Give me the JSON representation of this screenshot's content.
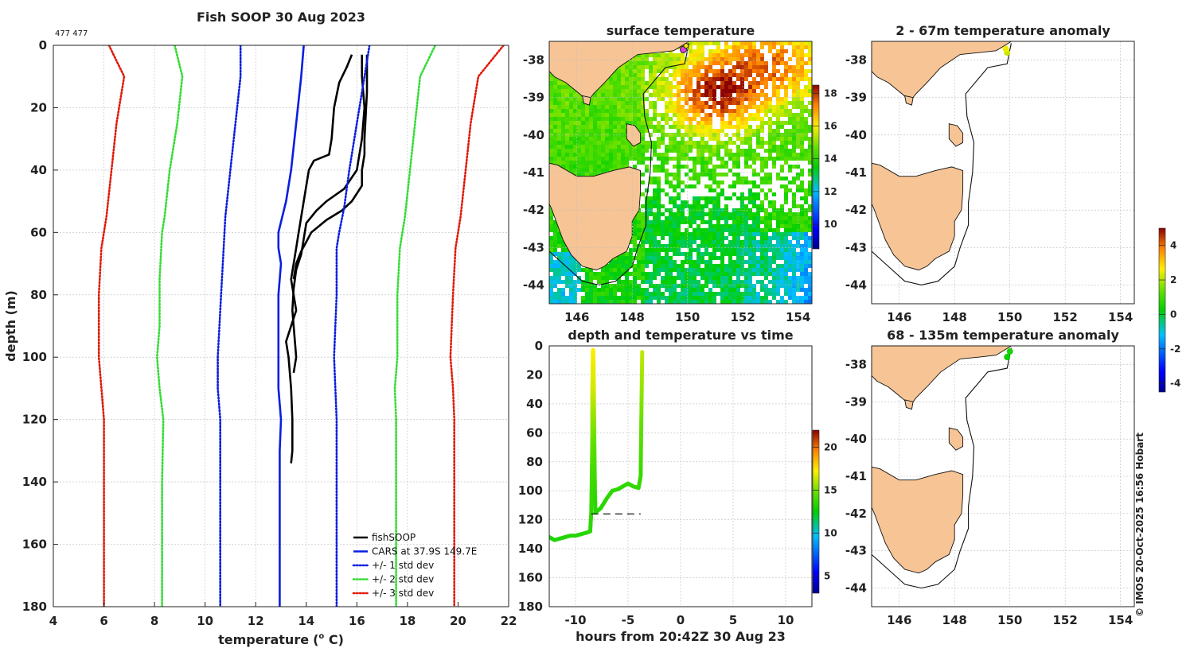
{
  "main": {
    "title": "Fish SOOP 30 Aug 2023",
    "profile_id": "477 477",
    "xlabel": "temperature",
    "xlabel_sup": "o",
    "xlabel_unit": " C)",
    "xlabel_open": "(",
    "ylabel": "depth (m)",
    "copyright": "© IMOS 20-Oct-2025 16:56 Hobart"
  },
  "colors": {
    "fishsoop": "#000000",
    "cars": "#0a1ee0",
    "std1": "#0a1ee0",
    "std2": "#33dd33",
    "std3": "#e01a0a",
    "land": "#f7c496"
  },
  "chart_data": [
    {
      "name": "profile",
      "type": "line",
      "title": "Fish SOOP 30 Aug 2023",
      "xlabel": "temperature (o C)",
      "ylabel": "depth (m)",
      "xlim": [
        4,
        22
      ],
      "ylim": [
        180,
        0
      ],
      "xticks": [
        "4",
        "6",
        "8",
        "10",
        "12",
        "14",
        "16",
        "18",
        "20",
        "22"
      ],
      "yticks": [
        "0",
        "20",
        "40",
        "60",
        "80",
        "100",
        "120",
        "140",
        "160",
        "180"
      ],
      "legend": {
        "position": "bottom-right",
        "entries": [
          "fishSOOP",
          "CARS at 37.9S 149.7E",
          "+/- 1 std dev",
          "+/- 2 std dev",
          "+/- 3 std dev"
        ]
      },
      "series": [
        {
          "name": "fishSOOP",
          "style": "solid",
          "color": "#000000",
          "points": [
            [
              15.8,
              3
            ],
            [
              15.6,
              7
            ],
            [
              15.3,
              12
            ],
            [
              15.1,
              20
            ],
            [
              15.0,
              30
            ],
            [
              14.9,
              35
            ],
            [
              14.3,
              37
            ],
            [
              14.1,
              40
            ],
            [
              14.0,
              45
            ],
            [
              13.9,
              50
            ],
            [
              13.8,
              55
            ],
            [
              13.7,
              60
            ],
            [
              13.6,
              65
            ],
            [
              13.5,
              70
            ],
            [
              13.4,
              75
            ],
            [
              13.5,
              80
            ],
            [
              13.6,
              85
            ],
            [
              13.4,
              90
            ],
            [
              13.2,
              95
            ],
            [
              13.3,
              100
            ],
            [
              13.4,
              110
            ],
            [
              13.45,
              120
            ],
            [
              13.45,
              130
            ],
            [
              13.4,
              134
            ]
          ]
        },
        {
          "name": "fishSOOP_b",
          "style": "solid",
          "color": "#000000",
          "points": [
            [
              16.2,
              3
            ],
            [
              16.2,
              10
            ],
            [
              16.3,
              20
            ],
            [
              16.2,
              30
            ],
            [
              16.0,
              40
            ],
            [
              15.5,
              46
            ],
            [
              14.8,
              50
            ],
            [
              14.4,
              53
            ],
            [
              14.0,
              57
            ],
            [
              13.9,
              62
            ],
            [
              13.8,
              67
            ],
            [
              13.6,
              72
            ],
            [
              13.5,
              78
            ],
            [
              13.45,
              85
            ],
            [
              13.55,
              95
            ],
            [
              13.6,
              100
            ],
            [
              13.5,
              105
            ]
          ]
        },
        {
          "name": "fishSOOP_c",
          "style": "solid",
          "color": "#000000",
          "points": [
            [
              16.4,
              3
            ],
            [
              16.4,
              15
            ],
            [
              16.3,
              30
            ],
            [
              16.3,
              35
            ],
            [
              16.2,
              40
            ],
            [
              16.2,
              45
            ],
            [
              15.8,
              50
            ],
            [
              15.4,
              53
            ],
            [
              14.8,
              56
            ],
            [
              14.2,
              60
            ],
            [
              14.0,
              63
            ],
            [
              13.8,
              66
            ],
            [
              13.6,
              70
            ],
            [
              13.5,
              75
            ]
          ]
        },
        {
          "name": "CARS at 37.9S 149.7E",
          "style": "solid",
          "color": "#0a1ee0",
          "points": [
            [
              13.9,
              0
            ],
            [
              13.8,
              10
            ],
            [
              13.6,
              25
            ],
            [
              13.4,
              40
            ],
            [
              13.2,
              50
            ],
            [
              12.9,
              60
            ],
            [
              12.9,
              65
            ],
            [
              13.0,
              70
            ],
            [
              12.9,
              80
            ],
            [
              12.9,
              100
            ],
            [
              12.9,
              110
            ],
            [
              13.0,
              120
            ],
            [
              12.95,
              130
            ],
            [
              12.95,
              140
            ],
            [
              12.95,
              160
            ],
            [
              12.95,
              180
            ]
          ]
        },
        {
          "name": "-1 std",
          "style": "dotted",
          "color": "#0a1ee0",
          "points": [
            [
              11.4,
              0
            ],
            [
              11.4,
              10
            ],
            [
              11.2,
              25
            ],
            [
              11.0,
              40
            ],
            [
              10.8,
              55
            ],
            [
              10.7,
              70
            ],
            [
              10.6,
              85
            ],
            [
              10.5,
              100
            ],
            [
              10.5,
              110
            ],
            [
              10.6,
              120
            ],
            [
              10.6,
              140
            ],
            [
              10.6,
              180
            ]
          ]
        },
        {
          "name": "+1 std",
          "style": "dotted",
          "color": "#0a1ee0",
          "points": [
            [
              16.5,
              0
            ],
            [
              16.3,
              10
            ],
            [
              16.0,
              25
            ],
            [
              15.7,
              40
            ],
            [
              15.5,
              52
            ],
            [
              15.3,
              60
            ],
            [
              15.2,
              65
            ],
            [
              15.2,
              80
            ],
            [
              15.1,
              100
            ],
            [
              15.2,
              120
            ],
            [
              15.2,
              140
            ],
            [
              15.2,
              180
            ]
          ]
        },
        {
          "name": "-2 std",
          "style": "dotted",
          "color": "#33dd33",
          "points": [
            [
              8.8,
              0
            ],
            [
              9.1,
              10
            ],
            [
              8.9,
              25
            ],
            [
              8.6,
              40
            ],
            [
              8.4,
              55
            ],
            [
              8.3,
              60
            ],
            [
              8.2,
              75
            ],
            [
              8.2,
              90
            ],
            [
              8.1,
              100
            ],
            [
              8.2,
              110
            ],
            [
              8.35,
              120
            ],
            [
              8.3,
              140
            ],
            [
              8.3,
              180
            ]
          ]
        },
        {
          "name": "+2 std",
          "style": "dotted",
          "color": "#33dd33",
          "points": [
            [
              19.1,
              0
            ],
            [
              18.5,
              10
            ],
            [
              18.3,
              25
            ],
            [
              18.1,
              40
            ],
            [
              17.9,
              55
            ],
            [
              17.7,
              65
            ],
            [
              17.6,
              80
            ],
            [
              17.6,
              100
            ],
            [
              17.5,
              110
            ],
            [
              17.55,
              120
            ],
            [
              17.55,
              140
            ],
            [
              17.55,
              180
            ]
          ]
        },
        {
          "name": "-3 std",
          "style": "dotted",
          "color": "#e01a0a",
          "points": [
            [
              6.2,
              0
            ],
            [
              6.8,
              10
            ],
            [
              6.5,
              25
            ],
            [
              6.3,
              40
            ],
            [
              6.1,
              55
            ],
            [
              5.9,
              65
            ],
            [
              5.8,
              80
            ],
            [
              5.8,
              100
            ],
            [
              5.9,
              110
            ],
            [
              6.0,
              120
            ],
            [
              6.0,
              140
            ],
            [
              6.0,
              180
            ]
          ]
        },
        {
          "name": "+3 std",
          "style": "dotted",
          "color": "#e01a0a",
          "points": [
            [
              21.8,
              0
            ],
            [
              20.8,
              10
            ],
            [
              20.5,
              25
            ],
            [
              20.3,
              40
            ],
            [
              20.1,
              55
            ],
            [
              19.9,
              65
            ],
            [
              19.8,
              80
            ],
            [
              19.7,
              100
            ],
            [
              19.8,
              110
            ],
            [
              19.85,
              120
            ],
            [
              19.85,
              140
            ],
            [
              19.85,
              180
            ]
          ]
        }
      ]
    },
    {
      "name": "sst_map",
      "type": "heatmap",
      "title": "surface temperature",
      "xlim": [
        145,
        154.5
      ],
      "ylim": [
        -44.5,
        -37.5
      ],
      "xticks": [
        "146",
        "148",
        "150",
        "152",
        "154"
      ],
      "yticks": [
        "-38",
        "-39",
        "-40",
        "-41",
        "-42",
        "-43",
        "-44"
      ],
      "colorbar_ticks": [
        "10",
        "12",
        "14",
        "16",
        "18"
      ],
      "colorbar_range": [
        8.5,
        18.5
      ],
      "field_description": "warm (16-18) north-east of the shelf edge, 13-15 across Bass Strait, cooler (10-12) in the south-east"
    },
    {
      "name": "depth_time",
      "type": "scatter",
      "title": "depth and temperature vs time",
      "xlabel": "hours from 20:42Z 30 Aug 23",
      "xlim": [
        -12.5,
        12.5
      ],
      "ylim": [
        180,
        0
      ],
      "xticks": [
        "-10",
        "-5",
        "0",
        "5",
        "10"
      ],
      "yticks": [
        "0",
        "20",
        "40",
        "60",
        "80",
        "100",
        "120",
        "140",
        "160",
        "180"
      ],
      "colorbar_ticks": [
        "5",
        "10",
        "15",
        "20"
      ],
      "colorbar_range": [
        3,
        22
      ],
      "bottom_depth_line": {
        "x": [
          -8.5,
          -3.8
        ],
        "depth": 116
      },
      "track": [
        [
          -12.5,
          132,
          13.2
        ],
        [
          -12.0,
          134,
          13.2
        ],
        [
          -11.5,
          133,
          13.2
        ],
        [
          -11.0,
          132,
          13.3
        ],
        [
          -10.5,
          131,
          13.3
        ],
        [
          -10.0,
          131,
          13.3
        ],
        [
          -9.5,
          130,
          13.3
        ],
        [
          -9.0,
          129,
          13.4
        ],
        [
          -8.6,
          128,
          13.5
        ],
        [
          -8.5,
          115,
          13.6
        ],
        [
          -8.45,
          90,
          14.0
        ],
        [
          -8.4,
          60,
          15.0
        ],
        [
          -8.4,
          30,
          16.5
        ],
        [
          -8.35,
          3,
          17.2
        ],
        [
          -8.3,
          3,
          17.2
        ],
        [
          -8.25,
          30,
          16.5
        ],
        [
          -8.2,
          70,
          14.5
        ],
        [
          -8.15,
          100,
          13.6
        ],
        [
          -8.1,
          115,
          13.4
        ],
        [
          -7.6,
          112,
          13.4
        ],
        [
          -7.0,
          105,
          13.5
        ],
        [
          -6.5,
          100,
          13.5
        ],
        [
          -6.0,
          99,
          13.5
        ],
        [
          -5.5,
          97,
          13.5
        ],
        [
          -5.0,
          95,
          13.6
        ],
        [
          -4.5,
          97,
          13.6
        ],
        [
          -4.0,
          98,
          13.6
        ],
        [
          -3.8,
          90,
          13.7
        ],
        [
          -3.75,
          60,
          14.5
        ],
        [
          -3.7,
          30,
          15.5
        ],
        [
          -3.65,
          3,
          16.2
        ]
      ]
    },
    {
      "name": "anom_map_shallow",
      "type": "scatter",
      "title": "2 - 67m temperature anomaly",
      "xlim": [
        145,
        154.5
      ],
      "ylim": [
        -44.5,
        -37.5
      ],
      "xticks": [
        "146",
        "148",
        "150",
        "152",
        "154"
      ],
      "yticks": [
        "-38",
        "-39",
        "-40",
        "-41",
        "-42",
        "-43",
        "-44"
      ],
      "points": [
        {
          "lon": 149.9,
          "lat": -37.8,
          "anomaly": 2.2
        },
        {
          "lon": 149.85,
          "lat": -37.7,
          "anomaly": 2.5
        }
      ]
    },
    {
      "name": "anom_map_deep",
      "type": "scatter",
      "title": "68 - 135m temperature anomaly",
      "xlim": [
        145,
        154.5
      ],
      "ylim": [
        -44.5,
        -37.5
      ],
      "xticks": [
        "146",
        "148",
        "150",
        "152",
        "154"
      ],
      "yticks": [
        "-38",
        "-39",
        "-40",
        "-41",
        "-42",
        "-43",
        "-44"
      ],
      "points": [
        {
          "lon": 149.9,
          "lat": -37.8,
          "anomaly": 0.4
        },
        {
          "lon": 150.0,
          "lat": -37.65,
          "anomaly": 0.5
        }
      ],
      "colorbar_ticks": [
        "-4",
        "-2",
        "0",
        "2",
        "4"
      ],
      "colorbar_range": [
        -4.5,
        5
      ]
    }
  ]
}
